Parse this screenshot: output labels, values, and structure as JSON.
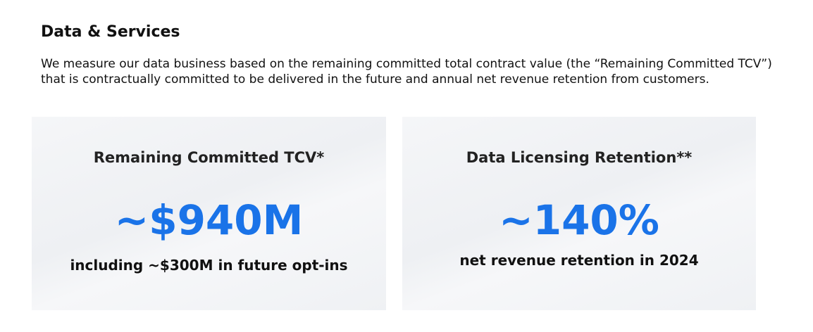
{
  "section": {
    "title": "Data & Services",
    "description": "We measure our data business based on the remaining committed total contract value (the “Remaining Committed TCV”) that is contractually committed to be delivered in the future and annual net revenue retention from customers."
  },
  "cards": [
    {
      "title": "Remaining Committed TCV*",
      "value": "~$940M",
      "subtitle": "including ~$300M in future opt-ins"
    },
    {
      "title": "Data Licensing Retention**",
      "value": "~140%",
      "subtitle": "net revenue retention in 2024"
    }
  ],
  "colors": {
    "accent": "#1a73e8",
    "card_background": "#f2f3f6",
    "text": "#111111"
  }
}
